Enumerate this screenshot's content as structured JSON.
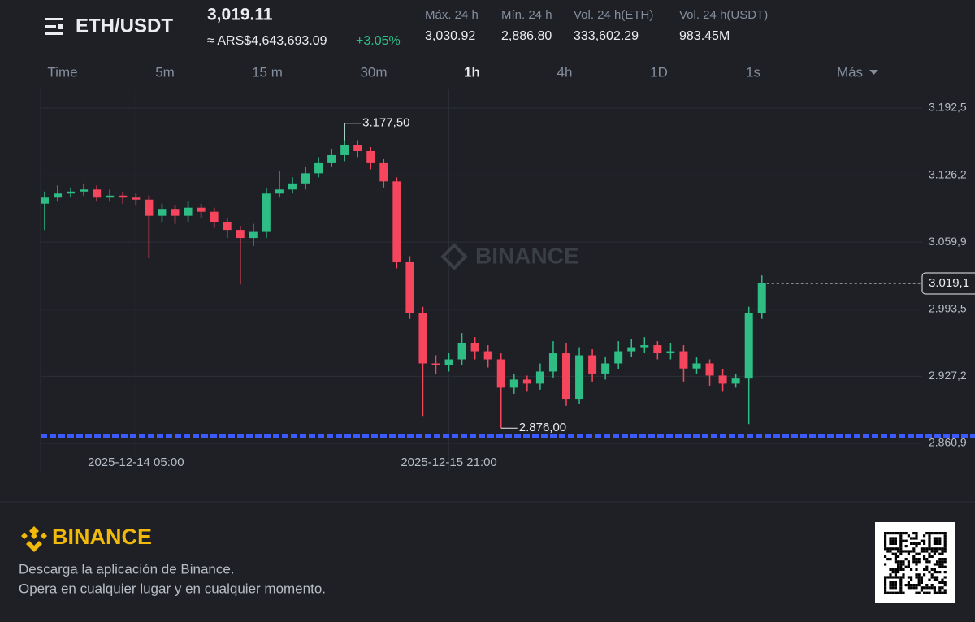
{
  "header": {
    "pair": "ETH/USDT",
    "price": "3,019.11",
    "fiat": "≈ ARS$4,643,693.09",
    "change": "+3.05%",
    "stats": [
      {
        "label": "Máx. 24 h",
        "value": "3,030.92"
      },
      {
        "label": "Mín. 24 h",
        "value": "2,886.80"
      },
      {
        "label": "Vol. 24 h(ETH)",
        "value": "333,602.29"
      },
      {
        "label": "Vol. 24 h(USDT)",
        "value": "983.45M"
      }
    ]
  },
  "tabs": [
    "Time",
    "5m",
    "15 m",
    "30m",
    "1h",
    "4h",
    "1D",
    "1s",
    "Más"
  ],
  "selected_tab": 4,
  "chart_data": {
    "type": "candlestick",
    "categories": [
      null,
      null,
      null,
      null,
      null,
      null,
      null,
      "2025-12-14 05:00",
      null,
      null,
      null,
      null,
      null,
      null,
      null,
      null,
      null,
      null,
      null,
      null,
      null,
      null,
      null,
      null,
      null,
      null,
      null,
      null,
      null,
      null,
      null,
      "2025-12-15 21:00",
      null,
      null,
      null,
      null,
      null,
      null,
      null,
      null,
      null,
      null,
      null,
      null,
      null,
      null,
      null,
      null,
      null,
      null,
      null,
      null,
      null,
      null,
      null,
      null
    ],
    "open": [
      3098,
      3104,
      3108,
      3110,
      3112,
      3104,
      3106,
      3104,
      3102,
      3086,
      3092,
      3086,
      3094,
      3090,
      3080,
      3072,
      3064,
      3070,
      3108,
      3112,
      3118,
      3128,
      3138,
      3146,
      3156,
      3150,
      3138,
      3120,
      3040,
      2990,
      2940,
      2938,
      2944,
      2960,
      2952,
      2944,
      2916,
      2924,
      2920,
      2932,
      2950,
      2905,
      2948,
      2930,
      2940,
      2952,
      2956,
      2958,
      2950,
      2952,
      2935,
      2940,
      2928,
      2920,
      2925,
      2990
    ],
    "high": [
      3110,
      3116,
      3114,
      3118,
      3116,
      3112,
      3110,
      3108,
      3106,
      3098,
      3096,
      3100,
      3098,
      3094,
      3084,
      3076,
      3078,
      3114,
      3130,
      3124,
      3134,
      3144,
      3152,
      3177.5,
      3160,
      3154,
      3142,
      3124,
      3046,
      2996,
      2948,
      2950,
      2970,
      2966,
      2958,
      2950,
      2930,
      2928,
      2940,
      2962,
      2960,
      2956,
      2954,
      2946,
      2962,
      2964,
      2966,
      2962,
      2960,
      2958,
      2946,
      2944,
      2934,
      2930,
      2996,
      3027
    ],
    "low": [
      3072,
      3100,
      3104,
      3106,
      3100,
      3100,
      3098,
      3096,
      3044,
      3080,
      3078,
      3080,
      3084,
      3074,
      3064,
      3018,
      3056,
      3064,
      3104,
      3108,
      3112,
      3124,
      3134,
      3140,
      3144,
      3132,
      3114,
      3034,
      2984,
      2888,
      2930,
      2932,
      2938,
      2944,
      2936,
      2876,
      2910,
      2912,
      2914,
      2926,
      2898,
      2900,
      2922,
      2924,
      2934,
      2946,
      2950,
      2944,
      2944,
      2922,
      2930,
      2918,
      2912,
      2916,
      2880,
      2984
    ],
    "close": [
      3104,
      3108,
      3110,
      3112,
      3104,
      3106,
      3104,
      3102,
      3086,
      3092,
      3086,
      3094,
      3090,
      3080,
      3072,
      3064,
      3070,
      3108,
      3112,
      3118,
      3128,
      3138,
      3146,
      3156,
      3150,
      3138,
      3120,
      3040,
      2990,
      2940,
      2938,
      2944,
      2960,
      2952,
      2944,
      2916,
      2924,
      2920,
      2932,
      2950,
      2905,
      2948,
      2930,
      2940,
      2952,
      2956,
      2958,
      2950,
      2952,
      2935,
      2940,
      2928,
      2920,
      2925,
      2990,
      3019.11
    ],
    "up_color": "#2ebd85",
    "down_color": "#f6465d",
    "ylim": [
      2833.6,
      3211.0
    ],
    "yticks": [
      {
        "value": 2860.9,
        "label": "2.860,9"
      },
      {
        "value": 2927.2,
        "label": "2.927,2"
      },
      {
        "value": 2993.5,
        "label": "2.993,5"
      },
      {
        "value": 3059.9,
        "label": "3.059,9"
      },
      {
        "value": 3126.2,
        "label": "3.126,2"
      },
      {
        "value": 3192.5,
        "label": "3.192,5"
      }
    ],
    "grid": true,
    "last_price": {
      "value": 3019.11,
      "label": "3.019,1"
    },
    "max_label": {
      "value": 3177.5,
      "label": "3.177,50"
    },
    "min_label": {
      "value": 2876,
      "label": "2.876,00"
    },
    "support_line": {
      "value": 2868,
      "color": "#3d5afe"
    },
    "watermark": "BINANCE"
  },
  "footer": {
    "brand": "BINANCE",
    "line1": "Descarga la aplicación de Binance.",
    "line2": "Opera en cualquier lugar y en cualquier momento."
  }
}
